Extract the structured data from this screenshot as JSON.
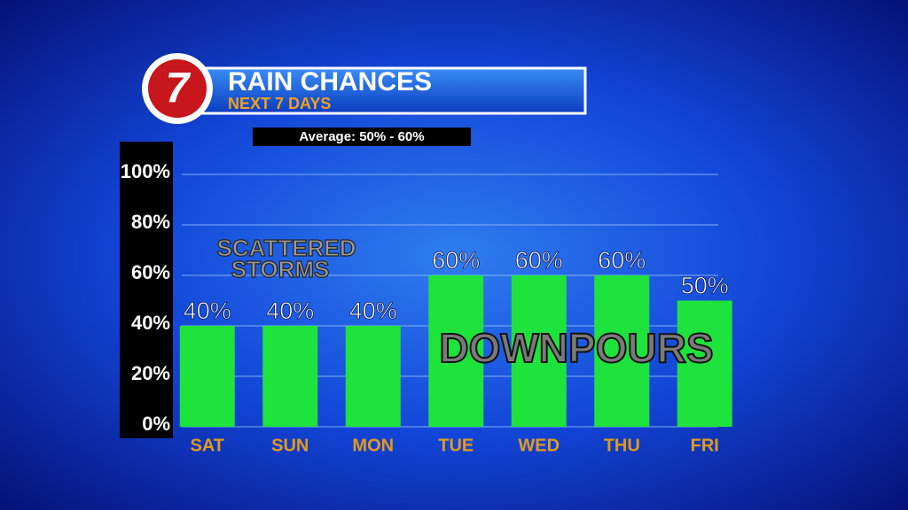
{
  "logo": "7",
  "chart_data": {
    "type": "bar",
    "title": "RAIN CHANCES",
    "subtitle": "NEXT 7 DAYS",
    "note": "Average: 50% - 60%",
    "annotations": [
      "SCATTERED",
      "STORMS",
      "DOWNPOURS"
    ],
    "categories": [
      "SAT",
      "SUN",
      "MON",
      "TUE",
      "WED",
      "THU",
      "FRI"
    ],
    "values": [
      40,
      40,
      40,
      60,
      60,
      60,
      50
    ],
    "value_labels": [
      "40%",
      "40%",
      "40%",
      "60%",
      "60%",
      "60%",
      "50%"
    ],
    "color": "#1ee33c",
    "ylim": [
      0,
      100
    ],
    "yticks": [
      {
        "value": 0,
        "label": "0%"
      },
      {
        "value": 20,
        "label": "20%"
      },
      {
        "value": 40,
        "label": "40%"
      },
      {
        "value": 60,
        "label": "60%"
      },
      {
        "value": 80,
        "label": "80%"
      },
      {
        "value": 100,
        "label": "100%"
      }
    ],
    "grid": true
  }
}
